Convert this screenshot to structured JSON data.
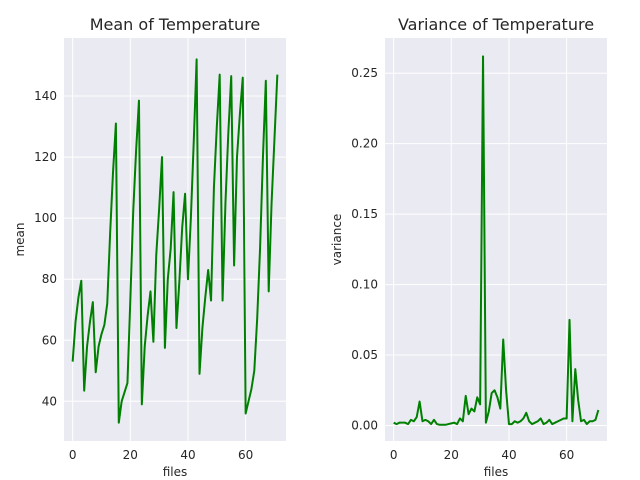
{
  "chart_data": [
    {
      "type": "line",
      "title": "Mean of Temperature",
      "xlabel": "files",
      "ylabel": "mean",
      "xlim": [
        -3,
        74
      ],
      "ylim": [
        27,
        159
      ],
      "xticks": [
        0,
        20,
        40,
        60
      ],
      "yticks": [
        40,
        60,
        80,
        100,
        120,
        140
      ],
      "xtick_labels": [
        "0",
        "20",
        "40",
        "60"
      ],
      "ytick_labels": [
        "40",
        "60",
        "80",
        "100",
        "120",
        "140"
      ],
      "grid": true,
      "color": "#008000",
      "x": [
        0,
        1,
        2,
        3,
        4,
        5,
        6,
        7,
        8,
        9,
        10,
        11,
        12,
        13,
        14,
        15,
        16,
        17,
        18,
        19,
        20,
        21,
        22,
        23,
        24,
        25,
        26,
        27,
        28,
        29,
        30,
        31,
        32,
        33,
        34,
        35,
        36,
        37,
        38,
        39,
        40,
        41,
        42,
        43,
        44,
        45,
        46,
        47,
        48,
        49,
        50,
        51,
        52,
        53,
        54,
        55,
        56,
        57,
        58,
        59,
        60,
        61,
        62,
        63,
        64,
        65,
        66,
        67,
        68,
        69,
        70,
        71
      ],
      "values": [
        53,
        66,
        74,
        79.5,
        43.5,
        58,
        66,
        72.5,
        49.5,
        58,
        62,
        65,
        72,
        95,
        115,
        131,
        33,
        40,
        43,
        46,
        73,
        102,
        122,
        138.5,
        39,
        58,
        68,
        76,
        59.5,
        88,
        103,
        120,
        57.5,
        80,
        90,
        108.5,
        64,
        79,
        97,
        108,
        80,
        100,
        125,
        152,
        49,
        64,
        74,
        83,
        73,
        110,
        130,
        147,
        73,
        105,
        128,
        146.5,
        84.5,
        120,
        134,
        146,
        36,
        40,
        44,
        50,
        67,
        90,
        120,
        145,
        76,
        105,
        126,
        147
      ]
    },
    {
      "type": "line",
      "title": "Variance of Temperature",
      "xlabel": "files",
      "ylabel": "variance",
      "xlim": [
        -3,
        74
      ],
      "ylim": [
        -0.011,
        0.275
      ],
      "xticks": [
        0,
        20,
        40,
        60
      ],
      "yticks": [
        0,
        0.05,
        0.1,
        0.15,
        0.2,
        0.25
      ],
      "xtick_labels": [
        "0",
        "20",
        "40",
        "60"
      ],
      "ytick_labels": [
        "0.00",
        "0.05",
        "0.10",
        "0.15",
        "0.20",
        "0.25"
      ],
      "grid": true,
      "color": "#008000",
      "x": [
        0,
        1,
        2,
        3,
        4,
        5,
        6,
        7,
        8,
        9,
        10,
        11,
        12,
        13,
        14,
        15,
        16,
        17,
        18,
        19,
        20,
        21,
        22,
        23,
        24,
        25,
        26,
        27,
        28,
        29,
        30,
        31,
        32,
        33,
        34,
        35,
        36,
        37,
        38,
        39,
        40,
        41,
        42,
        43,
        44,
        45,
        46,
        47,
        48,
        49,
        50,
        51,
        52,
        53,
        54,
        55,
        56,
        57,
        58,
        59,
        60,
        61,
        62,
        63,
        64,
        65,
        66,
        67,
        68,
        69,
        70,
        71
      ],
      "values": [
        0.002,
        0.001,
        0.002,
        0.002,
        0.002,
        0.001,
        0.004,
        0.003,
        0.006,
        0.017,
        0.003,
        0.004,
        0.003,
        0.001,
        0.004,
        0.001,
        0.0005,
        0.0005,
        0.0005,
        0.001,
        0.0015,
        0.002,
        0.001,
        0.005,
        0.003,
        0.021,
        0.008,
        0.012,
        0.01,
        0.02,
        0.015,
        0.262,
        0.002,
        0.01,
        0.023,
        0.025,
        0.02,
        0.012,
        0.061,
        0.025,
        0.001,
        0.001,
        0.003,
        0.002,
        0.003,
        0.005,
        0.009,
        0.003,
        0.001,
        0.002,
        0.003,
        0.005,
        0.001,
        0.002,
        0.004,
        0.001,
        0.002,
        0.003,
        0.004,
        0.005,
        0.005,
        0.075,
        0.003,
        0.04,
        0.018,
        0.003,
        0.004,
        0.001,
        0.003,
        0.003,
        0.004,
        0.011
      ]
    }
  ]
}
